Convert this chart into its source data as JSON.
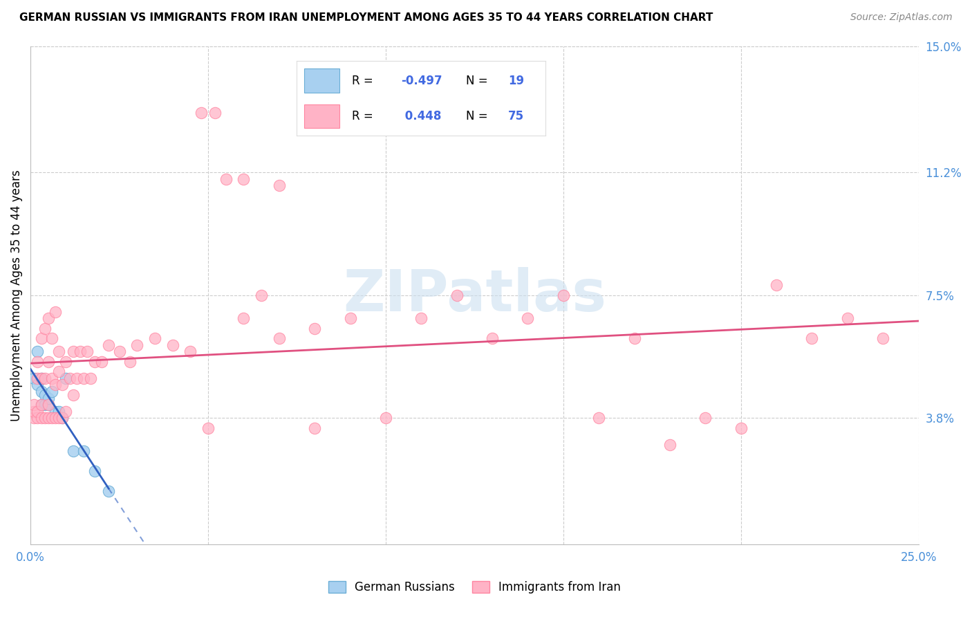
{
  "title": "GERMAN RUSSIAN VS IMMIGRANTS FROM IRAN UNEMPLOYMENT AMONG AGES 35 TO 44 YEARS CORRELATION CHART",
  "source": "Source: ZipAtlas.com",
  "ylabel": "Unemployment Among Ages 35 to 44 years",
  "xlim": [
    0.0,
    0.25
  ],
  "ylim": [
    0.0,
    0.15
  ],
  "blue_x": [
    0.001,
    0.002,
    0.002,
    0.003,
    0.003,
    0.003,
    0.004,
    0.004,
    0.005,
    0.005,
    0.006,
    0.007,
    0.008,
    0.009,
    0.01,
    0.012,
    0.015,
    0.018,
    0.022
  ],
  "blue_y": [
    0.05,
    0.058,
    0.048,
    0.05,
    0.046,
    0.042,
    0.045,
    0.042,
    0.042,
    0.044,
    0.046,
    0.04,
    0.04,
    0.038,
    0.05,
    0.028,
    0.028,
    0.022,
    0.016
  ],
  "pink_x": [
    0.001,
    0.001,
    0.001,
    0.002,
    0.002,
    0.002,
    0.002,
    0.003,
    0.003,
    0.003,
    0.003,
    0.004,
    0.004,
    0.004,
    0.005,
    0.005,
    0.005,
    0.005,
    0.006,
    0.006,
    0.006,
    0.007,
    0.007,
    0.007,
    0.008,
    0.008,
    0.008,
    0.009,
    0.009,
    0.01,
    0.01,
    0.011,
    0.012,
    0.012,
    0.013,
    0.014,
    0.015,
    0.016,
    0.017,
    0.018,
    0.02,
    0.022,
    0.025,
    0.028,
    0.03,
    0.035,
    0.04,
    0.045,
    0.05,
    0.055,
    0.06,
    0.065,
    0.07,
    0.08,
    0.09,
    0.1,
    0.11,
    0.12,
    0.13,
    0.14,
    0.15,
    0.16,
    0.17,
    0.18,
    0.19,
    0.2,
    0.21,
    0.22,
    0.23,
    0.24,
    0.048,
    0.052,
    0.06,
    0.07,
    0.08
  ],
  "pink_y": [
    0.038,
    0.04,
    0.042,
    0.038,
    0.04,
    0.05,
    0.055,
    0.038,
    0.042,
    0.05,
    0.062,
    0.038,
    0.05,
    0.065,
    0.038,
    0.042,
    0.055,
    0.068,
    0.038,
    0.05,
    0.062,
    0.038,
    0.048,
    0.07,
    0.038,
    0.052,
    0.058,
    0.038,
    0.048,
    0.04,
    0.055,
    0.05,
    0.045,
    0.058,
    0.05,
    0.058,
    0.05,
    0.058,
    0.05,
    0.055,
    0.055,
    0.06,
    0.058,
    0.055,
    0.06,
    0.062,
    0.06,
    0.058,
    0.035,
    0.11,
    0.068,
    0.075,
    0.062,
    0.065,
    0.068,
    0.038,
    0.068,
    0.075,
    0.062,
    0.068,
    0.075,
    0.038,
    0.062,
    0.03,
    0.038,
    0.035,
    0.078,
    0.062,
    0.068,
    0.062,
    0.13,
    0.13,
    0.11,
    0.108,
    0.035
  ],
  "trend_blue_x0": 0.0,
  "trend_blue_x1": 0.025,
  "trend_blue_dash_x1": 0.03,
  "trend_pink_x0": 0.0,
  "trend_pink_x1": 0.25,
  "blue_color_fill": "#a8d0f0",
  "blue_color_edge": "#6baed6",
  "pink_color_fill": "#ffb3c6",
  "pink_color_edge": "#ff85a1",
  "trend_blue_color": "#3060c0",
  "trend_pink_color": "#e05080",
  "grid_color": "#cccccc",
  "watermark_color": "#cce0f0",
  "ytick_positions": [
    0.038,
    0.075,
    0.112,
    0.15
  ],
  "ytick_labels": [
    "3.8%",
    "7.5%",
    "11.2%",
    "15.0%"
  ],
  "xtick_positions": [
    0.0,
    0.05,
    0.1,
    0.15,
    0.2,
    0.25
  ],
  "xtick_labels": [
    "0.0%",
    "",
    "",
    "",
    "",
    "25.0%"
  ],
  "tick_color": "#4a90d9"
}
